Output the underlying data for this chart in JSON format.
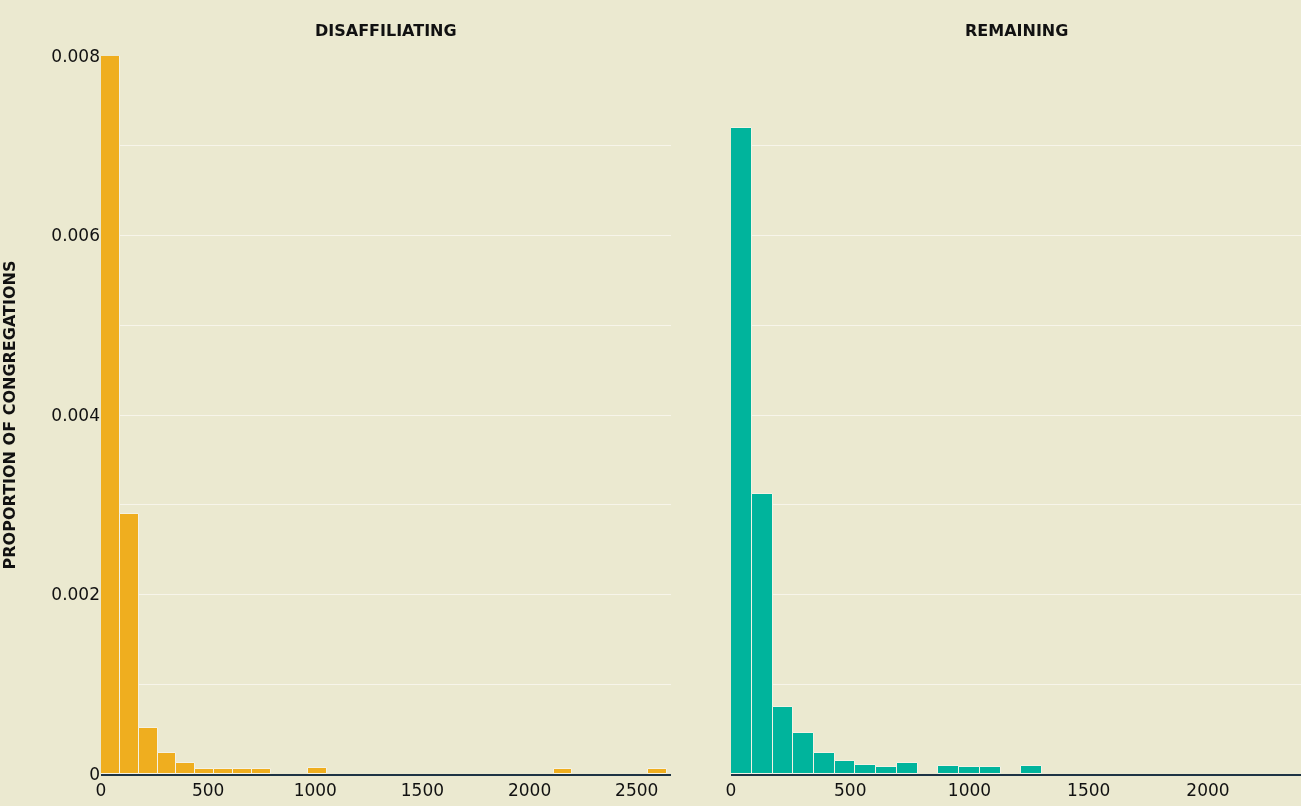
{
  "chart_data": [
    {
      "type": "histogram",
      "title": "DISAFFILIATING",
      "ylabel": "PROPORTION OF CONGREGATIONS",
      "color": "#efae1f",
      "bins": [
        0,
        88,
        176,
        264,
        352,
        440,
        528,
        616,
        704,
        792,
        880,
        968,
        1056,
        1144,
        1232,
        1320,
        1408,
        1496,
        1584,
        1672,
        1760,
        1848,
        1936,
        2024,
        2112,
        2200,
        2288,
        2376,
        2464,
        2552,
        2640
      ],
      "values": [
        0.008,
        0.0029,
        0.00051,
        0.00023,
        0.00012,
        6e-05,
        6e-05,
        6e-05,
        6e-05,
        0,
        0,
        7e-05,
        0,
        0,
        0,
        0,
        0,
        0,
        0,
        0,
        0,
        0,
        0,
        0,
        6e-05,
        0,
        0,
        0,
        0,
        6e-05
      ],
      "xlim": [
        0,
        2660
      ],
      "xticks": [
        0,
        500,
        1000,
        1500,
        2000,
        2500
      ],
      "ylim": [
        0,
        0.008
      ],
      "yticks": [
        0,
        {
          "value": 0.001,
          "label": null
        },
        0.002,
        {
          "value": 0.003,
          "label": null
        },
        0.004,
        {
          "value": 0.005,
          "label": null
        },
        0.006,
        {
          "value": 0.007,
          "label": null
        },
        0.008
      ],
      "grid": "y"
    },
    {
      "type": "histogram",
      "title": "REMAINING",
      "color": "#00b49c",
      "bins": [
        0,
        87,
        174,
        261,
        348,
        435,
        522,
        609,
        696,
        783,
        870,
        957,
        1044,
        1131,
        1218,
        1305
      ],
      "values": [
        0.0072,
        0.00312,
        0.00075,
        0.00046,
        0.00023,
        0.00015,
        0.0001,
        8e-05,
        0.00012,
        0,
        9e-05,
        8e-05,
        8e-05,
        0,
        9e-05
      ],
      "xlim": [
        0,
        2390
      ],
      "xticks": [
        0,
        500,
        1000,
        1500,
        2000
      ],
      "ylim": [
        0,
        0.008
      ],
      "yticks": [
        0,
        {
          "value": 0.001,
          "label": null
        },
        0.002,
        {
          "value": 0.003,
          "label": null
        },
        0.004,
        {
          "value": 0.005,
          "label": null
        },
        0.006,
        {
          "value": 0.007,
          "label": null
        },
        0.008
      ],
      "grid": "y",
      "tick_labels": "x"
    }
  ]
}
